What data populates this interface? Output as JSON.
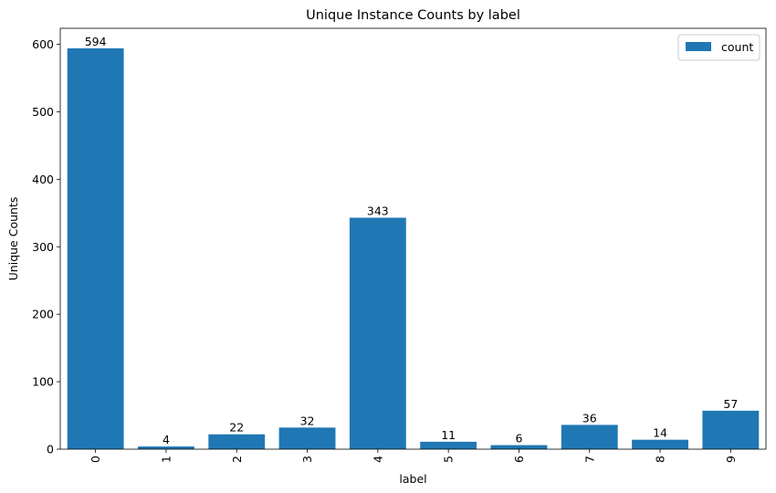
{
  "chart_data": {
    "type": "bar",
    "title": "Unique Instance Counts by label",
    "xlabel": "label",
    "ylabel": "Unique Counts",
    "categories": [
      "0",
      "1",
      "2",
      "3",
      "4",
      "5",
      "6",
      "7",
      "8",
      "9"
    ],
    "series": [
      {
        "name": "count",
        "values": [
          594,
          4,
          22,
          32,
          343,
          11,
          6,
          36,
          14,
          57
        ],
        "color": "#1f77b4"
      }
    ],
    "data_labels": [
      "594",
      "4",
      "22",
      "32",
      "343",
      "11",
      "6",
      "36",
      "14",
      "57"
    ],
    "ylim": [
      0,
      623.7
    ],
    "y_ticks": [
      0,
      100,
      200,
      300,
      400,
      500,
      600
    ],
    "x_tick_rotation": "vertical",
    "grid": false,
    "legend": {
      "position": "top-right",
      "entries": [
        "count"
      ]
    }
  }
}
